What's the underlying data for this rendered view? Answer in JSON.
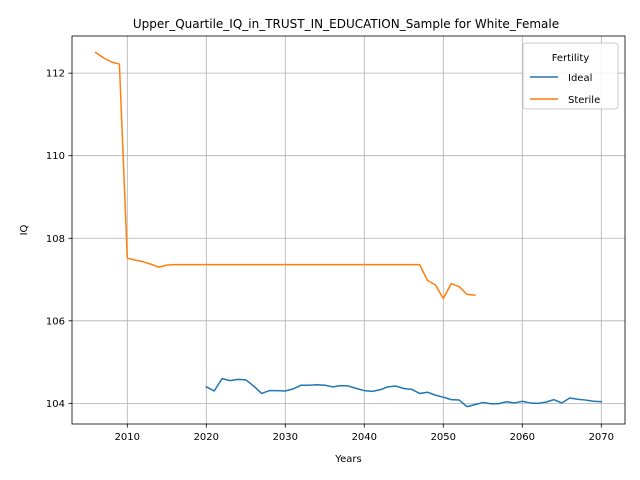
{
  "chart_data": {
    "type": "line",
    "title": "Upper_Quartile_IQ_in_TRUST_IN_EDUCATION_Sample for White_Female",
    "xlabel": "Years",
    "ylabel": "IQ",
    "xlim": [
      2003,
      2073
    ],
    "ylim": [
      103.5,
      112.9
    ],
    "xticks": [
      2010,
      2020,
      2030,
      2040,
      2050,
      2060,
      2070
    ],
    "yticks": [
      104,
      106,
      108,
      110,
      112
    ],
    "grid": true,
    "legend": {
      "title": "Fertility",
      "placement": "top-right"
    },
    "series": [
      {
        "name": "Ideal",
        "color": "#1f77b4",
        "x": [
          2020,
          2021,
          2022,
          2023,
          2024,
          2025,
          2026,
          2027,
          2028,
          2029,
          2030,
          2031,
          2032,
          2033,
          2034,
          2035,
          2036,
          2037,
          2038,
          2039,
          2040,
          2041,
          2042,
          2043,
          2044,
          2045,
          2046,
          2047,
          2048,
          2049,
          2050,
          2051,
          2052,
          2053,
          2054,
          2055,
          2056,
          2057,
          2058,
          2059,
          2060,
          2061,
          2062,
          2063,
          2064,
          2065,
          2066,
          2067,
          2068,
          2069,
          2070
        ],
        "y": [
          104.4,
          104.3,
          104.6,
          104.55,
          104.58,
          104.57,
          104.42,
          104.24,
          104.31,
          104.31,
          104.3,
          104.35,
          104.44,
          104.44,
          104.45,
          104.44,
          104.4,
          104.43,
          104.42,
          104.36,
          104.31,
          104.29,
          104.33,
          104.4,
          104.42,
          104.36,
          104.34,
          104.24,
          104.27,
          104.2,
          104.15,
          104.09,
          104.08,
          103.92,
          103.97,
          104.02,
          103.99,
          103.99,
          104.04,
          104.01,
          104.05,
          104.01,
          104.0,
          104.03,
          104.09,
          104.01,
          104.13,
          104.1,
          104.08,
          104.05,
          104.04
        ]
      },
      {
        "name": "Sterile",
        "color": "#ff7f0e",
        "x": [
          2006,
          2007,
          2008,
          2009,
          2010,
          2011,
          2012,
          2013,
          2014,
          2015,
          2016,
          2017,
          2018,
          2019,
          2020,
          2021,
          2022,
          2023,
          2024,
          2025,
          2026,
          2027,
          2028,
          2029,
          2030,
          2031,
          2032,
          2033,
          2034,
          2035,
          2036,
          2037,
          2038,
          2039,
          2040,
          2041,
          2042,
          2043,
          2044,
          2045,
          2046,
          2047,
          2048,
          2049,
          2050,
          2051,
          2052,
          2053,
          2054
        ],
        "y": [
          112.5,
          112.37,
          112.27,
          112.22,
          107.52,
          107.47,
          107.43,
          107.37,
          107.3,
          107.35,
          107.36,
          107.36,
          107.36,
          107.36,
          107.36,
          107.36,
          107.36,
          107.36,
          107.36,
          107.36,
          107.36,
          107.36,
          107.36,
          107.36,
          107.36,
          107.36,
          107.36,
          107.36,
          107.36,
          107.36,
          107.36,
          107.36,
          107.36,
          107.36,
          107.36,
          107.36,
          107.36,
          107.36,
          107.36,
          107.36,
          107.36,
          107.36,
          106.98,
          106.87,
          106.54,
          106.9,
          106.83,
          106.64,
          106.62
        ]
      }
    ]
  }
}
